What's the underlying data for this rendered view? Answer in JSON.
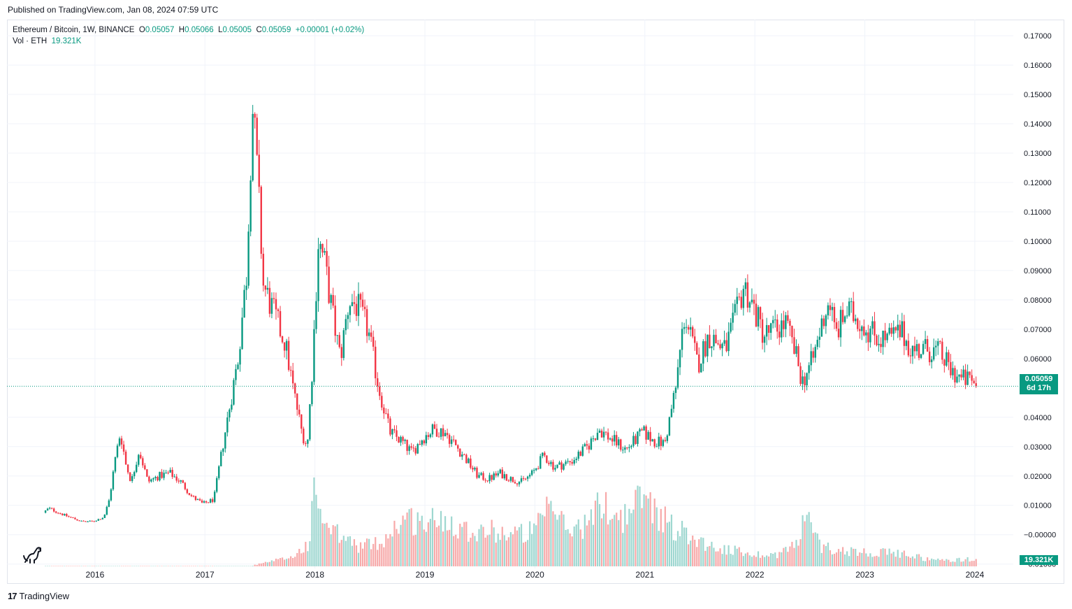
{
  "header": {
    "published": "Published on TradingView.com, Jan 08, 2024 07:59 UTC"
  },
  "legend": {
    "symbol": "Ethereum / Bitcoin, 1W, BINANCE",
    "o_label": "O",
    "o_value": "0.05057",
    "h_label": "H",
    "h_value": "0.05066",
    "l_label": "L",
    "l_value": "0.05005",
    "c_label": "C",
    "c_value": "0.05059",
    "change": "+0.00001 (+0.02%)",
    "vol_label": "Vol · ETH",
    "vol_value": "19.321K"
  },
  "price_tag": {
    "price": "0.05059",
    "countdown": "6d 17h"
  },
  "volume_tag": "19.321K",
  "footer": {
    "logo": "17",
    "brand": "TradingView"
  },
  "colors": {
    "up": "#089981",
    "down": "#f23645",
    "vol_up": "#9ed7d0",
    "vol_down": "#f7a9a9",
    "grid": "#f0f3fa"
  },
  "chart_data": {
    "type": "candlestick",
    "y_axis_labels": [
      "0.17000",
      "0.16000",
      "0.15000",
      "0.14000",
      "0.13000",
      "0.12000",
      "0.11000",
      "0.10000",
      "0.09000",
      "0.08000",
      "0.07000",
      "0.06000",
      "0.04000",
      "0.03000",
      "0.02000",
      "0.01000",
      "−0.00000",
      "−0.01000"
    ],
    "y_ticks": [
      0.17,
      0.16,
      0.15,
      0.14,
      0.13,
      0.12,
      0.11,
      0.1,
      0.09,
      0.08,
      0.07,
      0.06,
      0.04,
      0.03,
      0.02,
      0.01,
      0.0,
      -0.01
    ],
    "ylim": [
      -0.0115,
      0.1755
    ],
    "x_labels": [
      "2016",
      "2017",
      "2018",
      "2019",
      "2020",
      "2021",
      "2022",
      "2023",
      "2024"
    ],
    "x_label_years": [
      2016,
      2017,
      2018,
      2019,
      2020,
      2021,
      2022,
      2023,
      2024
    ],
    "x_range": [
      2015.2,
      2024.35
    ],
    "last_price": 0.05059,
    "price_keypoints": [
      [
        2015.55,
        0.0075
      ],
      [
        2015.6,
        0.009
      ],
      [
        2015.75,
        0.0065
      ],
      [
        2015.9,
        0.0045
      ],
      [
        2016.0,
        0.0045
      ],
      [
        2016.1,
        0.006
      ],
      [
        2016.15,
        0.012
      ],
      [
        2016.2,
        0.025
      ],
      [
        2016.25,
        0.035
      ],
      [
        2016.3,
        0.024
      ],
      [
        2016.35,
        0.018
      ],
      [
        2016.42,
        0.029
      ],
      [
        2016.5,
        0.018
      ],
      [
        2016.6,
        0.02
      ],
      [
        2016.7,
        0.021
      ],
      [
        2016.8,
        0.018
      ],
      [
        2016.9,
        0.013
      ],
      [
        2017.0,
        0.0105
      ],
      [
        2017.1,
        0.012
      ],
      [
        2017.18,
        0.03
      ],
      [
        2017.25,
        0.045
      ],
      [
        2017.32,
        0.06
      ],
      [
        2017.4,
        0.09
      ],
      [
        2017.45,
        0.147
      ],
      [
        2017.5,
        0.12
      ],
      [
        2017.55,
        0.085
      ],
      [
        2017.65,
        0.075
      ],
      [
        2017.75,
        0.065
      ],
      [
        2017.82,
        0.05
      ],
      [
        2017.9,
        0.035
      ],
      [
        2017.95,
        0.03
      ],
      [
        2018.0,
        0.06
      ],
      [
        2018.05,
        0.1
      ],
      [
        2018.1,
        0.094
      ],
      [
        2018.18,
        0.075
      ],
      [
        2018.25,
        0.06
      ],
      [
        2018.33,
        0.08
      ],
      [
        2018.4,
        0.078
      ],
      [
        2018.5,
        0.07
      ],
      [
        2018.6,
        0.05
      ],
      [
        2018.7,
        0.035
      ],
      [
        2018.8,
        0.032
      ],
      [
        2018.9,
        0.028
      ],
      [
        2019.0,
        0.033
      ],
      [
        2019.1,
        0.036
      ],
      [
        2019.2,
        0.035
      ],
      [
        2019.35,
        0.028
      ],
      [
        2019.5,
        0.02
      ],
      [
        2019.6,
        0.019
      ],
      [
        2019.7,
        0.021
      ],
      [
        2019.8,
        0.019
      ],
      [
        2019.9,
        0.018
      ],
      [
        2020.0,
        0.021
      ],
      [
        2020.1,
        0.027
      ],
      [
        2020.2,
        0.023
      ],
      [
        2020.35,
        0.025
      ],
      [
        2020.5,
        0.03
      ],
      [
        2020.6,
        0.036
      ],
      [
        2020.7,
        0.033
      ],
      [
        2020.85,
        0.029
      ],
      [
        2021.0,
        0.035
      ],
      [
        2021.1,
        0.032
      ],
      [
        2021.2,
        0.031
      ],
      [
        2021.3,
        0.05
      ],
      [
        2021.38,
        0.075
      ],
      [
        2021.5,
        0.058
      ],
      [
        2021.6,
        0.068
      ],
      [
        2021.75,
        0.063
      ],
      [
        2021.85,
        0.075
      ],
      [
        2021.92,
        0.085
      ],
      [
        2022.0,
        0.078
      ],
      [
        2022.1,
        0.068
      ],
      [
        2022.2,
        0.07
      ],
      [
        2022.3,
        0.072
      ],
      [
        2022.4,
        0.06
      ],
      [
        2022.45,
        0.052
      ],
      [
        2022.55,
        0.06
      ],
      [
        2022.65,
        0.075
      ],
      [
        2022.7,
        0.08
      ],
      [
        2022.75,
        0.068
      ],
      [
        2022.85,
        0.076
      ],
      [
        2022.95,
        0.074
      ],
      [
        2023.05,
        0.07
      ],
      [
        2023.15,
        0.067
      ],
      [
        2023.25,
        0.067
      ],
      [
        2023.35,
        0.069
      ],
      [
        2023.45,
        0.063
      ],
      [
        2023.6,
        0.063
      ],
      [
        2023.7,
        0.062
      ],
      [
        2023.8,
        0.056
      ],
      [
        2023.9,
        0.053
      ],
      [
        2024.0,
        0.0525
      ],
      [
        2024.02,
        0.05059
      ]
    ],
    "volume_keypoints": [
      [
        2015.55,
        0.0
      ],
      [
        2017.4,
        0.0
      ],
      [
        2017.6,
        0.06
      ],
      [
        2017.8,
        0.12
      ],
      [
        2017.95,
        0.3
      ],
      [
        2018.0,
        1.0
      ],
      [
        2018.1,
        0.45
      ],
      [
        2018.2,
        0.4
      ],
      [
        2018.4,
        0.25
      ],
      [
        2018.6,
        0.3
      ],
      [
        2018.8,
        0.6
      ],
      [
        2019.0,
        0.55
      ],
      [
        2019.2,
        0.6
      ],
      [
        2019.4,
        0.45
      ],
      [
        2019.6,
        0.45
      ],
      [
        2019.8,
        0.4
      ],
      [
        2020.0,
        0.45
      ],
      [
        2020.15,
        0.75
      ],
      [
        2020.3,
        0.45
      ],
      [
        2020.5,
        0.55
      ],
      [
        2020.6,
        0.8
      ],
      [
        2020.8,
        0.6
      ],
      [
        2021.0,
        0.9
      ],
      [
        2021.1,
        0.7
      ],
      [
        2021.25,
        0.5
      ],
      [
        2021.4,
        0.4
      ],
      [
        2021.6,
        0.25
      ],
      [
        2021.8,
        0.2
      ],
      [
        2022.0,
        0.15
      ],
      [
        2022.2,
        0.15
      ],
      [
        2022.4,
        0.3
      ],
      [
        2022.45,
        0.65
      ],
      [
        2022.6,
        0.25
      ],
      [
        2022.8,
        0.2
      ],
      [
        2023.0,
        0.18
      ],
      [
        2023.2,
        0.17
      ],
      [
        2023.4,
        0.15
      ],
      [
        2023.6,
        0.08
      ],
      [
        2023.8,
        0.08
      ],
      [
        2024.0,
        0.09
      ],
      [
        2024.02,
        0.08
      ]
    ]
  }
}
